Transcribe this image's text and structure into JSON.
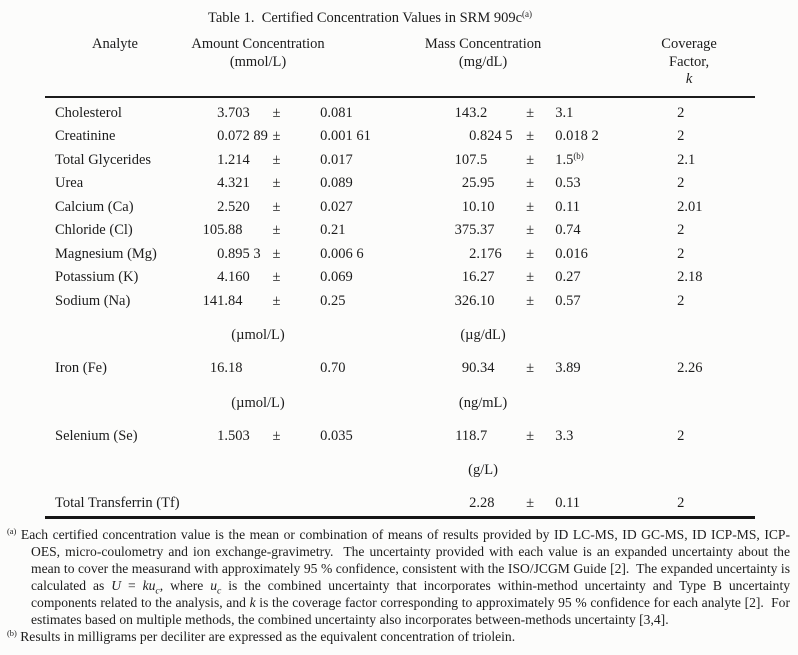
{
  "document": {
    "title": {
      "text": "Table 1.  Certified Concentration Values in SRM 909c",
      "sup": "(a)"
    }
  },
  "table": {
    "header": {
      "analyte": "Analyte",
      "amount_line1": "Amount Concentration",
      "amount_line2": "(mmol/L)",
      "mass_line1": "Mass Concentration",
      "mass_line2": "(mg/dL)",
      "coverage_line1": "Coverage Factor,",
      "coverage_line2": "k"
    },
    "rows": [
      {
        "type": "data",
        "analyte": "Cholesterol",
        "amount": {
          "value": "3.703",
          "pm": "±",
          "unc": "0.081"
        },
        "mass": {
          "value": "143.2",
          "pm": "±",
          "unc": "3.1"
        },
        "k": "2"
      },
      {
        "type": "data",
        "analyte": "Creatinine",
        "amount": {
          "value": "0.072 89",
          "pm": "±",
          "unc": "0.001 61"
        },
        "mass": {
          "value": "0.824 5",
          "pm": "±",
          "unc": "0.018 2"
        },
        "k": "2"
      },
      {
        "type": "data",
        "analyte": "Total Glycerides",
        "amount": {
          "value": "1.214",
          "pm": "±",
          "unc": "0.017"
        },
        "mass": {
          "value": "107.5",
          "pm": "±",
          "unc": "1.5",
          "unc_sup": "(b)"
        },
        "k": "2.1"
      },
      {
        "type": "data",
        "analyte": "Urea",
        "amount": {
          "value": "4.321",
          "pm": "±",
          "unc": "0.089"
        },
        "mass": {
          "value": "25.95",
          "pm": "±",
          "unc": "0.53"
        },
        "k": "2"
      },
      {
        "type": "data",
        "analyte": "Calcium (Ca)",
        "amount": {
          "value": "2.520",
          "pm": "±",
          "unc": "0.027"
        },
        "mass": {
          "value": "10.10",
          "pm": "±",
          "unc": "0.11"
        },
        "k": "2.01"
      },
      {
        "type": "data",
        "analyte": "Chloride (Cl)",
        "amount": {
          "value": "105.88",
          "pm": "±",
          "unc": "0.21"
        },
        "mass": {
          "value": "375.37",
          "pm": "±",
          "unc": "0.74"
        },
        "k": "2"
      },
      {
        "type": "data",
        "analyte": "Magnesium (Mg)",
        "amount": {
          "value": "0.895 3",
          "pm": "±",
          "unc": "0.006 6"
        },
        "mass": {
          "value": "2.176",
          "pm": "±",
          "unc": "0.016"
        },
        "k": "2"
      },
      {
        "type": "data",
        "analyte": "Potassium (K)",
        "amount": {
          "value": "4.160",
          "pm": "±",
          "unc": "0.069"
        },
        "mass": {
          "value": "16.27",
          "pm": "±",
          "unc": "0.27"
        },
        "k": "2.18"
      },
      {
        "type": "data",
        "analyte": "Sodium (Na)",
        "amount": {
          "value": "141.84",
          "pm": "±",
          "unc": "0.25"
        },
        "mass": {
          "value": "326.10",
          "pm": "±",
          "unc": "0.57"
        },
        "k": "2"
      },
      {
        "type": "units",
        "amount": "(µmol/L)",
        "mass": "(µg/dL)"
      },
      {
        "type": "data",
        "analyte": "Iron (Fe)",
        "amount": {
          "value": "16.18",
          "pm": "",
          "unc": "0.70"
        },
        "mass": {
          "value": "90.34",
          "pm": "±",
          "unc": "3.89"
        },
        "k": "2.26"
      },
      {
        "type": "units",
        "amount": "(µmol/L)",
        "mass": "(ng/mL)"
      },
      {
        "type": "data",
        "analyte": "Selenium (Se)",
        "amount": {
          "value": "1.503",
          "pm": "±",
          "unc": "0.035"
        },
        "mass": {
          "value": "118.7",
          "pm": "±",
          "unc": "3.3"
        },
        "k": "2"
      },
      {
        "type": "units",
        "amount": "",
        "mass": "(g/L)"
      },
      {
        "type": "data",
        "analyte": "Total Transferrin (Tf)",
        "amount": null,
        "mass": {
          "value": "2.28",
          "pm": "±",
          "unc": "0.11"
        },
        "k": "2"
      }
    ]
  },
  "footnotes": [
    {
      "marker": "(a)",
      "segments": [
        {
          "style": "plain",
          "text": "Each certified concentration value is the mean or combination of means of results provided by ID LC-MS, ID GC-MS, ID ICP-MS, ICP-OES, micro-coulometry and ion exchange-gravimetry.  The uncertainty provided with each value is an expanded uncertainty about the mean to cover the measurand with approximately 95 % confidence, consistent with the ISO/JCGM Guide [2].  The expanded uncertainty is calculated as "
        },
        {
          "style": "i",
          "text": "U"
        },
        {
          "style": "plain",
          "text": " = "
        },
        {
          "style": "i",
          "text": "ku"
        },
        {
          "style": "isub",
          "text": "c"
        },
        {
          "style": "plain",
          "text": ", where "
        },
        {
          "style": "i",
          "text": "u"
        },
        {
          "style": "isub",
          "text": "c"
        },
        {
          "style": "plain",
          "text": " is the combined uncertainty that incorporates within-method uncertainty and Type B uncertainty components related to the analysis, and "
        },
        {
          "style": "i",
          "text": "k"
        },
        {
          "style": "plain",
          "text": " is the coverage factor corresponding to approximately 95 % confidence for each analyte [2].  For estimates based on multiple methods, the combined uncertainty also incorporates between-methods uncertainty [3,4]."
        }
      ]
    },
    {
      "marker": "(b)",
      "segments": [
        {
          "style": "plain",
          "text": "Results in milligrams per deciliter are expressed as the equivalent concentration of triolein."
        }
      ]
    }
  ]
}
